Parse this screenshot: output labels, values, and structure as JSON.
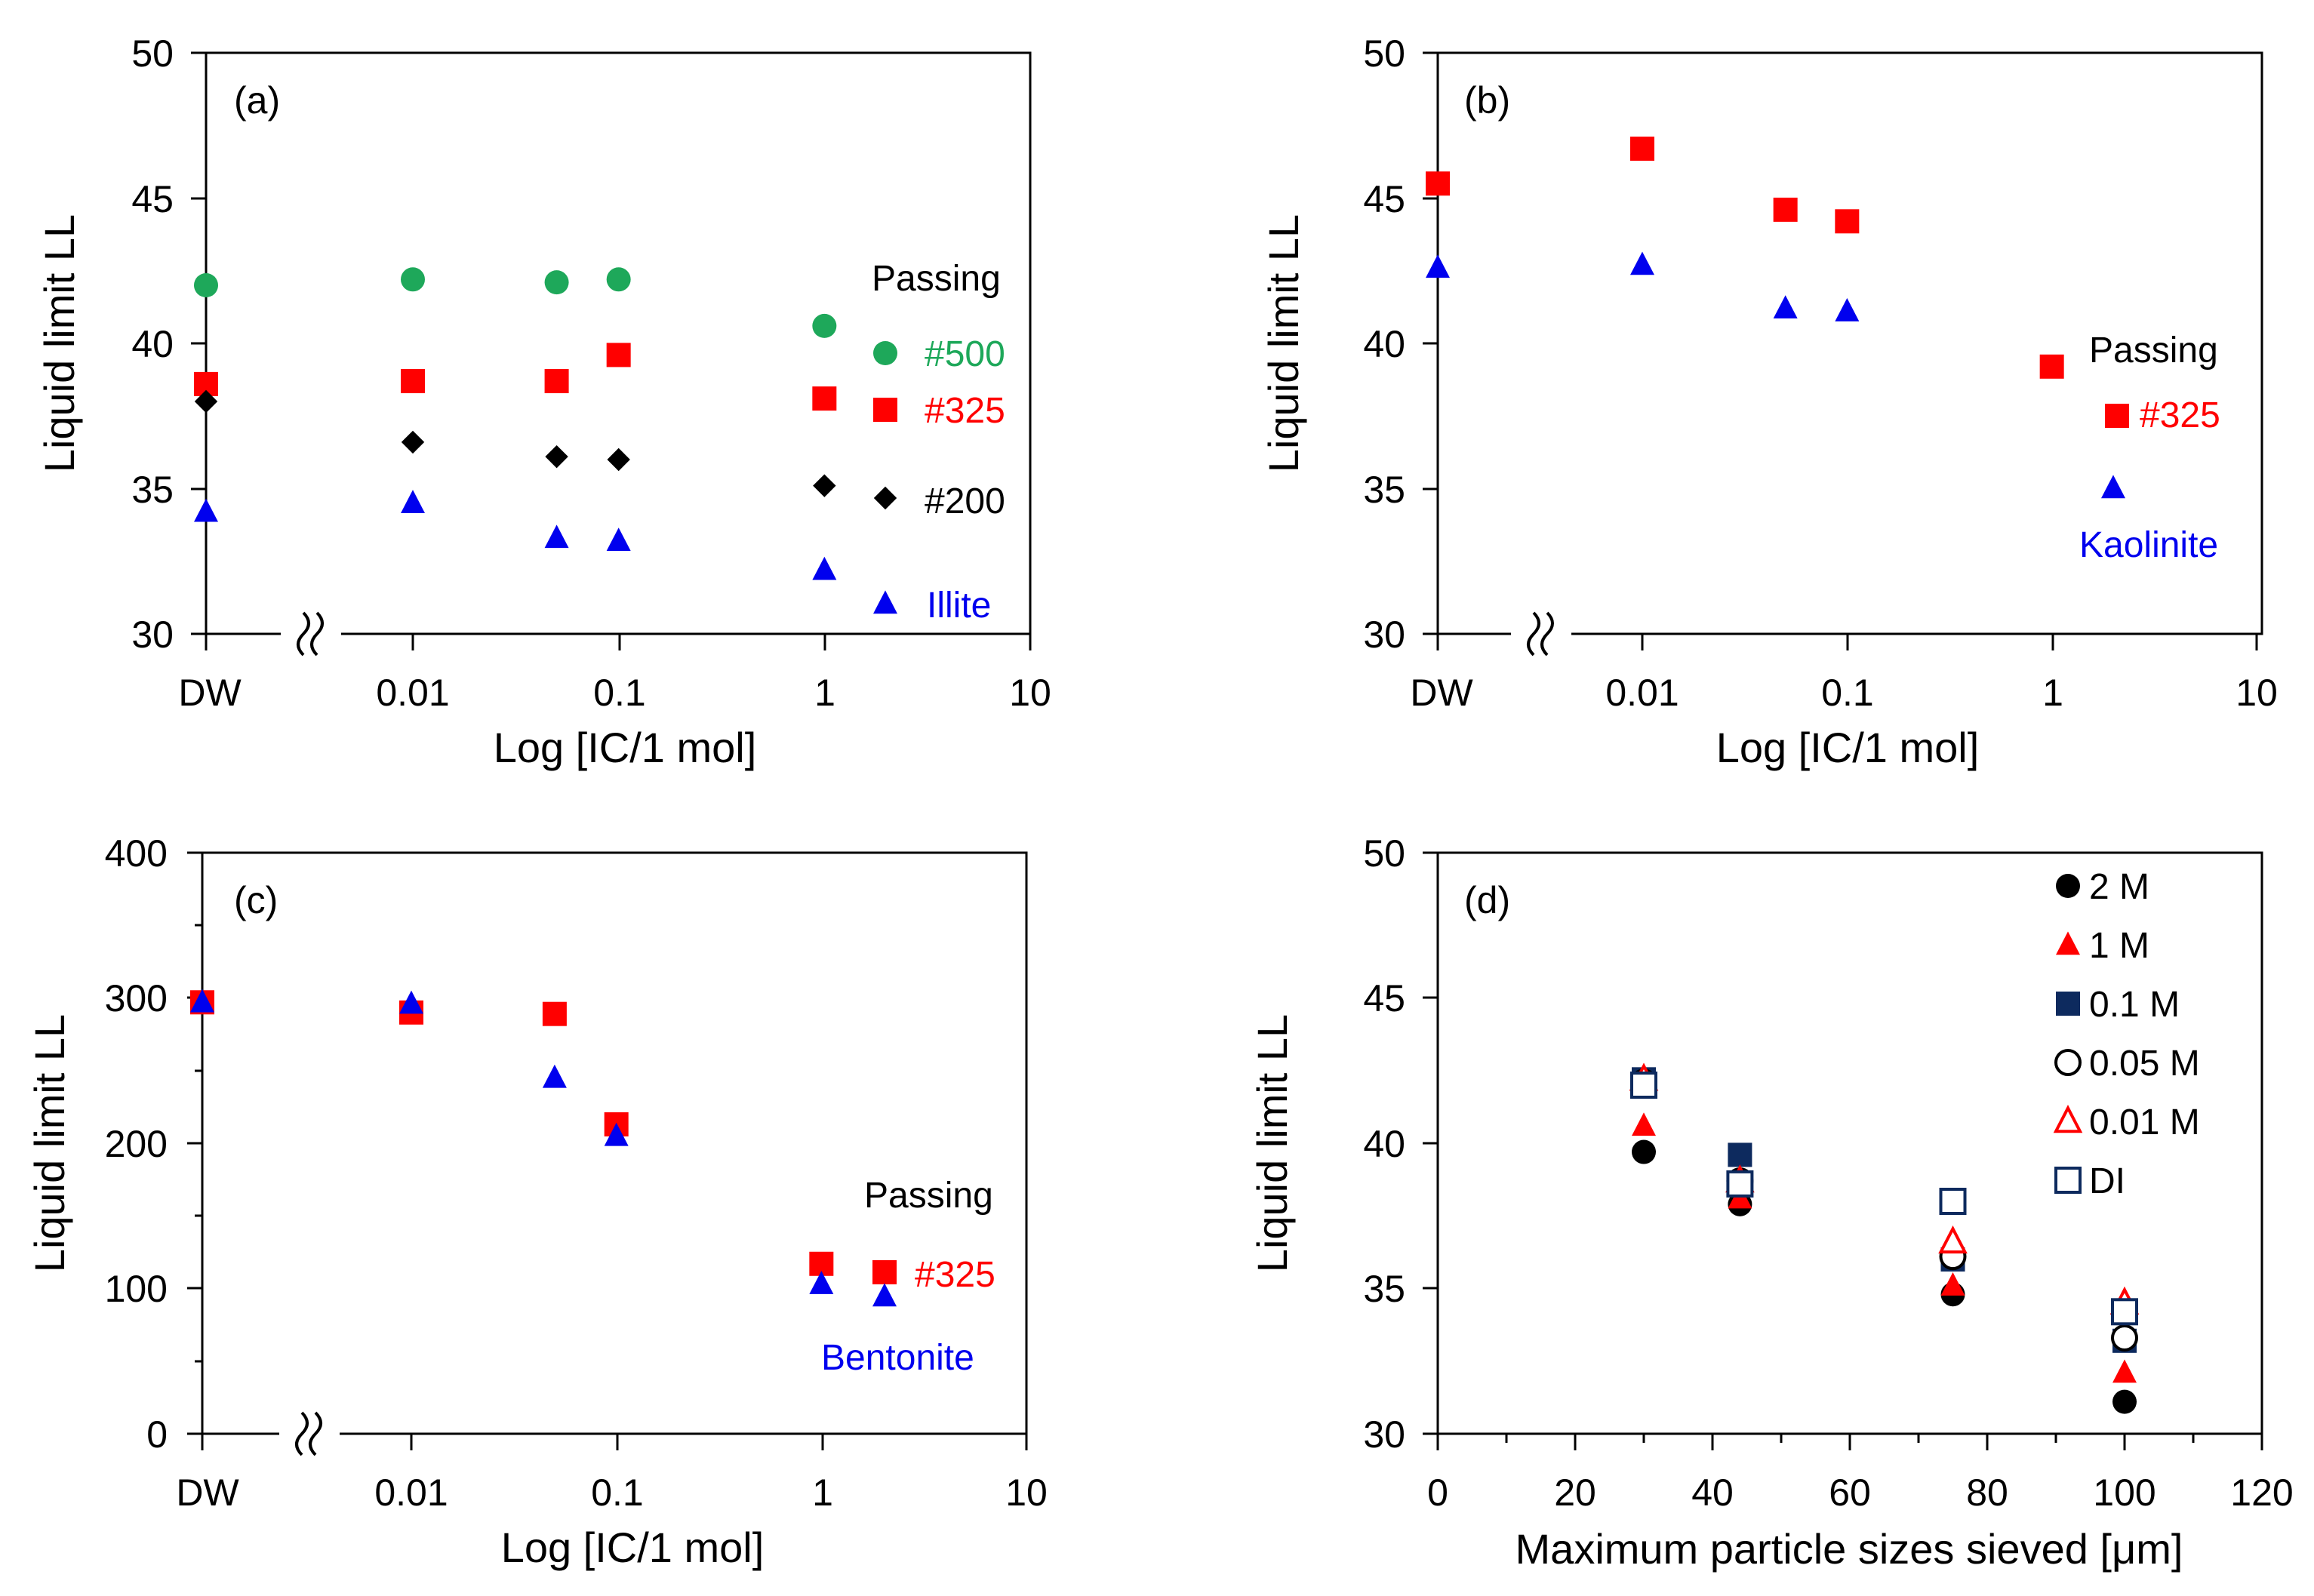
{
  "colors": {
    "green": "#1ea85a",
    "red": "#ff0000",
    "black": "#000000",
    "blue": "#0000ee",
    "navy": "#0d2a5e",
    "break_mark": "#000000"
  },
  "chart_data": [
    {
      "id": "a",
      "type": "scatter",
      "panel_label": "(a)",
      "xlabel": "Log [IC/1 mol]",
      "ylabel": "Liquid limit LL",
      "xscale": "log-with-break",
      "ylim": [
        30,
        50
      ],
      "yticks": [
        "30",
        "35",
        "40",
        "45",
        "50"
      ],
      "xtick_labels": [
        "DW",
        "0.01",
        "0.1",
        "1",
        "10"
      ],
      "legend_title": "Passing",
      "series": [
        {
          "name": "#500",
          "marker": "circle",
          "color": "#1ea85a",
          "x": [
            "DW",
            0.01,
            0.05,
            0.1,
            1
          ],
          "y": [
            42.0,
            42.2,
            42.1,
            42.2,
            40.6
          ]
        },
        {
          "name": "#325",
          "marker": "square",
          "color": "#ff0000",
          "x": [
            "DW",
            0.01,
            0.05,
            0.1,
            1
          ],
          "y": [
            38.6,
            38.7,
            38.7,
            39.6,
            38.1
          ]
        },
        {
          "name": "#200",
          "marker": "diamond",
          "color": "#000000",
          "x": [
            "DW",
            0.01,
            0.05,
            0.1,
            1
          ],
          "y": [
            38.0,
            36.6,
            36.1,
            36.0,
            35.1
          ]
        },
        {
          "name": "Illite",
          "marker": "triangle",
          "color": "#0000ee",
          "x": [
            "DW",
            0.01,
            0.05,
            0.1,
            1
          ],
          "y": [
            34.2,
            34.5,
            33.3,
            33.2,
            32.2
          ]
        }
      ]
    },
    {
      "id": "b",
      "type": "scatter",
      "panel_label": "(b)",
      "xlabel": "Log [IC/1 mol]",
      "ylabel": "Liquid limit LL",
      "xscale": "log-with-break",
      "ylim": [
        30,
        50
      ],
      "yticks": [
        "30",
        "35",
        "40",
        "45",
        "50"
      ],
      "xtick_labels": [
        "DW",
        "0.01",
        "0.1",
        "1",
        "10"
      ],
      "legend_title": "Passing",
      "series": [
        {
          "name": "#325",
          "marker": "square",
          "color": "#ff0000",
          "x": [
            "DW",
            0.01,
            0.05,
            0.1,
            1
          ],
          "y": [
            45.5,
            46.7,
            44.6,
            44.2,
            39.2
          ]
        },
        {
          "name": "Kaolinite",
          "marker": "triangle",
          "color": "#0000ee",
          "x": [
            "DW",
            0.01,
            0.05,
            0.1
          ],
          "y": [
            42.6,
            42.7,
            41.2,
            41.1
          ]
        }
      ]
    },
    {
      "id": "c",
      "type": "scatter",
      "panel_label": "(c)",
      "xlabel": "Log [IC/1 mol]",
      "ylabel": "Liquid limit LL",
      "xscale": "log-with-break",
      "ylim": [
        0,
        400
      ],
      "yticks": [
        "0",
        "100",
        "200",
        "300",
        "400"
      ],
      "xtick_labels": [
        "DW",
        "0.01",
        "0.1",
        "1",
        "10"
      ],
      "legend_title": "Passing",
      "series": [
        {
          "name": "#325",
          "marker": "square",
          "color": "#ff0000",
          "x": [
            "DW",
            0.01,
            0.05,
            0.1,
            1
          ],
          "y": [
            297,
            290,
            289,
            213,
            117
          ]
        },
        {
          "name": "Bentonite",
          "marker": "triangle",
          "color": "#0000ee",
          "x": [
            "DW",
            0.01,
            0.05,
            0.1,
            1
          ],
          "y": [
            297,
            296,
            245,
            205,
            103
          ]
        }
      ]
    },
    {
      "id": "d",
      "type": "scatter",
      "panel_label": "(d)",
      "xlabel": "Maximum  particle sizes sieved [μm]",
      "ylabel": "Liquid limit LL",
      "xlim": [
        0,
        120
      ],
      "ylim": [
        30,
        50
      ],
      "xticks": [
        "0",
        "20",
        "40",
        "60",
        "80",
        "100",
        "120"
      ],
      "yticks": [
        "30",
        "35",
        "40",
        "45",
        "50"
      ],
      "series": [
        {
          "name": "2 M",
          "marker": "circle",
          "color": "#000000",
          "fill": true,
          "x": [
            30,
            44,
            75,
            100
          ],
          "y": [
            39.7,
            37.9,
            34.8,
            31.1
          ]
        },
        {
          "name": "1 M",
          "marker": "triangle",
          "color": "#ff0000",
          "fill": true,
          "x": [
            30,
            44,
            75,
            100
          ],
          "y": [
            40.6,
            38.1,
            35.1,
            32.1
          ]
        },
        {
          "name": "0.1 M",
          "marker": "square",
          "color": "#0d2a5e",
          "fill": true,
          "x": [
            30,
            44,
            75,
            100
          ],
          "y": [
            42.2,
            39.6,
            36.0,
            33.2
          ]
        },
        {
          "name": "0.05 M",
          "marker": "circle",
          "color": "#000000",
          "fill": false,
          "x": [
            30,
            44,
            75,
            100
          ],
          "y": [
            42.1,
            38.7,
            36.1,
            33.3
          ]
        },
        {
          "name": "0.01 M",
          "marker": "triangle",
          "color": "#ff0000",
          "fill": false,
          "x": [
            30,
            44,
            75,
            100
          ],
          "y": [
            42.2,
            38.7,
            36.6,
            34.5
          ]
        },
        {
          "name": "DI",
          "marker": "square",
          "color": "#0d2a5e",
          "fill": false,
          "x": [
            30,
            44,
            75,
            100
          ],
          "y": [
            42.0,
            38.6,
            38.0,
            34.2
          ]
        }
      ]
    }
  ]
}
